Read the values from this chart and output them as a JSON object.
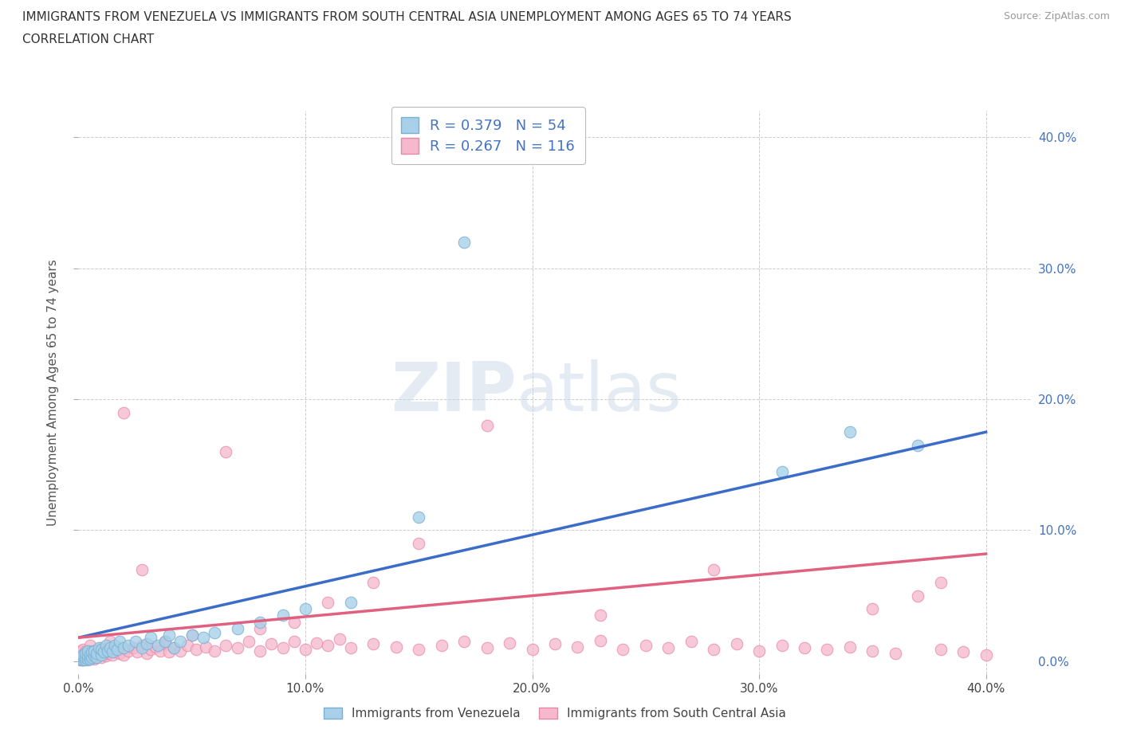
{
  "title_line1": "IMMIGRANTS FROM VENEZUELA VS IMMIGRANTS FROM SOUTH CENTRAL ASIA UNEMPLOYMENT AMONG AGES 65 TO 74 YEARS",
  "title_line2": "CORRELATION CHART",
  "source": "Source: ZipAtlas.com",
  "ylabel": "Unemployment Among Ages 65 to 74 years",
  "xlim": [
    0.0,
    0.42
  ],
  "ylim": [
    -0.01,
    0.42
  ],
  "venezuela_color": "#a8d0e8",
  "venezuela_edge": "#7ab0d4",
  "southasia_color": "#f5b8cc",
  "southasia_edge": "#e888a8",
  "trendline_venezuela_color": "#3a6cc8",
  "trendline_southasia_color": "#e06080",
  "legend_label1": "R = 0.379   N = 54",
  "legend_label2": "R = 0.267   N = 116",
  "legend_bottom_label1": "Immigrants from Venezuela",
  "legend_bottom_label2": "Immigrants from South Central Asia",
  "watermark_zip": "ZIP",
  "watermark_atlas": "atlas",
  "tick_vals": [
    0.0,
    0.1,
    0.2,
    0.3,
    0.4
  ],
  "tick_labels": [
    "0.0%",
    "10.0%",
    "20.0%",
    "30.0%",
    "40.0%"
  ],
  "trend_ven_x0": 0.0,
  "trend_ven_y0": 0.018,
  "trend_ven_x1": 0.4,
  "trend_ven_y1": 0.175,
  "trend_sca_x0": 0.0,
  "trend_sca_y0": 0.018,
  "trend_sca_x1": 0.4,
  "trend_sca_y1": 0.082,
  "venezuela_x": [
    0.001,
    0.001,
    0.002,
    0.002,
    0.002,
    0.003,
    0.003,
    0.003,
    0.004,
    0.004,
    0.004,
    0.005,
    0.005,
    0.006,
    0.006,
    0.007,
    0.007,
    0.008,
    0.008,
    0.009,
    0.01,
    0.01,
    0.011,
    0.012,
    0.013,
    0.014,
    0.015,
    0.016,
    0.017,
    0.018,
    0.02,
    0.022,
    0.025,
    0.028,
    0.03,
    0.032,
    0.035,
    0.038,
    0.04,
    0.042,
    0.045,
    0.05,
    0.055,
    0.06,
    0.07,
    0.08,
    0.09,
    0.1,
    0.12,
    0.15,
    0.17,
    0.31,
    0.34,
    0.37
  ],
  "venezuela_y": [
    0.001,
    0.002,
    0.001,
    0.003,
    0.005,
    0.001,
    0.003,
    0.006,
    0.002,
    0.004,
    0.008,
    0.002,
    0.005,
    0.003,
    0.007,
    0.004,
    0.008,
    0.003,
    0.006,
    0.01,
    0.005,
    0.009,
    0.007,
    0.012,
    0.008,
    0.01,
    0.007,
    0.012,
    0.009,
    0.015,
    0.01,
    0.012,
    0.015,
    0.01,
    0.013,
    0.018,
    0.012,
    0.015,
    0.02,
    0.01,
    0.015,
    0.02,
    0.018,
    0.022,
    0.025,
    0.03,
    0.035,
    0.04,
    0.045,
    0.11,
    0.32,
    0.145,
    0.175,
    0.165
  ],
  "southasia_x": [
    0.001,
    0.001,
    0.001,
    0.001,
    0.002,
    0.002,
    0.002,
    0.002,
    0.003,
    0.003,
    0.003,
    0.004,
    0.004,
    0.004,
    0.005,
    0.005,
    0.005,
    0.005,
    0.006,
    0.006,
    0.007,
    0.007,
    0.007,
    0.008,
    0.008,
    0.009,
    0.009,
    0.01,
    0.01,
    0.011,
    0.012,
    0.013,
    0.014,
    0.015,
    0.016,
    0.017,
    0.018,
    0.02,
    0.022,
    0.024,
    0.026,
    0.028,
    0.03,
    0.032,
    0.034,
    0.036,
    0.038,
    0.04,
    0.042,
    0.045,
    0.048,
    0.052,
    0.056,
    0.06,
    0.065,
    0.07,
    0.075,
    0.08,
    0.085,
    0.09,
    0.095,
    0.1,
    0.105,
    0.11,
    0.115,
    0.12,
    0.13,
    0.14,
    0.15,
    0.16,
    0.17,
    0.18,
    0.19,
    0.2,
    0.21,
    0.22,
    0.23,
    0.24,
    0.25,
    0.26,
    0.27,
    0.28,
    0.29,
    0.3,
    0.31,
    0.32,
    0.33,
    0.34,
    0.35,
    0.36,
    0.37,
    0.38,
    0.39,
    0.4,
    0.38,
    0.35,
    0.28,
    0.23,
    0.18,
    0.15,
    0.13,
    0.11,
    0.095,
    0.08,
    0.065,
    0.05,
    0.038,
    0.028,
    0.02,
    0.014,
    0.01,
    0.007,
    0.005,
    0.004,
    0.003,
    0.002
  ],
  "southasia_y": [
    0.001,
    0.002,
    0.004,
    0.008,
    0.001,
    0.003,
    0.005,
    0.009,
    0.002,
    0.004,
    0.007,
    0.001,
    0.003,
    0.006,
    0.002,
    0.004,
    0.008,
    0.012,
    0.003,
    0.005,
    0.002,
    0.004,
    0.007,
    0.003,
    0.006,
    0.004,
    0.008,
    0.003,
    0.006,
    0.005,
    0.004,
    0.006,
    0.008,
    0.005,
    0.007,
    0.01,
    0.006,
    0.005,
    0.008,
    0.01,
    0.007,
    0.012,
    0.006,
    0.009,
    0.011,
    0.008,
    0.013,
    0.007,
    0.01,
    0.008,
    0.012,
    0.009,
    0.011,
    0.008,
    0.012,
    0.01,
    0.015,
    0.008,
    0.013,
    0.01,
    0.015,
    0.009,
    0.014,
    0.012,
    0.017,
    0.01,
    0.013,
    0.011,
    0.009,
    0.012,
    0.015,
    0.01,
    0.014,
    0.009,
    0.013,
    0.011,
    0.016,
    0.009,
    0.012,
    0.01,
    0.015,
    0.009,
    0.013,
    0.008,
    0.012,
    0.01,
    0.009,
    0.011,
    0.008,
    0.006,
    0.05,
    0.009,
    0.007,
    0.005,
    0.06,
    0.04,
    0.07,
    0.035,
    0.18,
    0.09,
    0.06,
    0.045,
    0.03,
    0.025,
    0.16,
    0.02,
    0.015,
    0.07,
    0.19,
    0.015,
    0.01,
    0.008,
    0.005,
    0.003,
    0.002,
    0.001
  ]
}
